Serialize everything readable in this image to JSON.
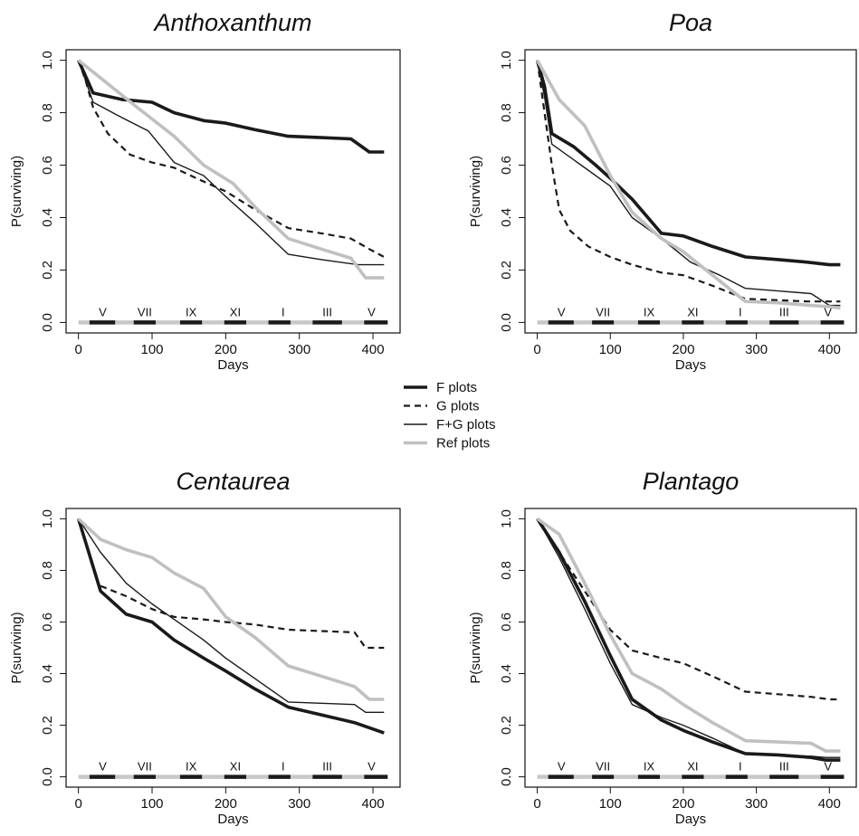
{
  "chart_data": [
    {
      "type": "line",
      "title": "Anthoxanthum",
      "xlabel": "Days",
      "ylabel": "P(surviving)",
      "xlim": [
        0,
        420
      ],
      "ylim": [
        0,
        1
      ],
      "xticks": [
        "0",
        "100",
        "200",
        "300",
        "400"
      ],
      "yticks": [
        "0.0",
        "0.2",
        "0.4",
        "0.6",
        "0.8",
        "1.0"
      ],
      "months": [
        "V",
        "VII",
        "IX",
        "XI",
        "I",
        "III",
        "V"
      ],
      "series": [
        {
          "name": "F plots",
          "x": [
            0,
            20,
            60,
            100,
            130,
            170,
            200,
            240,
            285,
            330,
            370,
            395,
            415
          ],
          "y": [
            1.0,
            0.875,
            0.85,
            0.84,
            0.8,
            0.77,
            0.76,
            0.735,
            0.71,
            0.705,
            0.7,
            0.65,
            0.65
          ]
        },
        {
          "name": "G plots",
          "x": [
            0,
            10,
            20,
            40,
            70,
            100,
            130,
            160,
            200,
            240,
            285,
            330,
            370,
            395,
            415
          ],
          "y": [
            1.0,
            0.92,
            0.82,
            0.72,
            0.64,
            0.61,
            0.59,
            0.55,
            0.5,
            0.43,
            0.36,
            0.34,
            0.32,
            0.28,
            0.25
          ]
        },
        {
          "name": "F+G plots",
          "x": [
            0,
            20,
            60,
            95,
            130,
            170,
            200,
            240,
            285,
            330,
            380,
            415
          ],
          "y": [
            1.0,
            0.84,
            0.78,
            0.73,
            0.61,
            0.56,
            0.48,
            0.38,
            0.26,
            0.24,
            0.22,
            0.22
          ]
        },
        {
          "name": "Ref plots",
          "x": [
            0,
            40,
            80,
            130,
            170,
            210,
            240,
            285,
            330,
            370,
            390,
            415
          ],
          "y": [
            1.0,
            0.91,
            0.82,
            0.71,
            0.6,
            0.53,
            0.44,
            0.32,
            0.28,
            0.245,
            0.17,
            0.17
          ]
        }
      ]
    },
    {
      "type": "line",
      "title": "Poa",
      "xlabel": "Days",
      "ylabel": "P(surviving)",
      "xlim": [
        0,
        420
      ],
      "ylim": [
        0,
        1
      ],
      "xticks": [
        "0",
        "100",
        "200",
        "300",
        "400"
      ],
      "yticks": [
        "0.0",
        "0.2",
        "0.4",
        "0.6",
        "0.8",
        "1.0"
      ],
      "months": [
        "V",
        "VII",
        "IX",
        "XI",
        "I",
        "III",
        "V"
      ],
      "series": [
        {
          "name": "F plots",
          "x": [
            0,
            10,
            20,
            50,
            80,
            100,
            130,
            170,
            200,
            240,
            285,
            330,
            370,
            400,
            415
          ],
          "y": [
            1.0,
            0.9,
            0.72,
            0.67,
            0.6,
            0.55,
            0.47,
            0.34,
            0.33,
            0.29,
            0.25,
            0.24,
            0.23,
            0.22,
            0.22
          ]
        },
        {
          "name": "G plots",
          "x": [
            0,
            10,
            20,
            30,
            45,
            70,
            100,
            130,
            170,
            200,
            240,
            285,
            330,
            370,
            400,
            415
          ],
          "y": [
            1.0,
            0.8,
            0.6,
            0.43,
            0.35,
            0.29,
            0.25,
            0.22,
            0.19,
            0.18,
            0.14,
            0.09,
            0.085,
            0.08,
            0.08,
            0.08
          ]
        },
        {
          "name": "F+G plots",
          "x": [
            0,
            10,
            20,
            60,
            100,
            130,
            170,
            210,
            250,
            285,
            330,
            375,
            400,
            415
          ],
          "y": [
            1.0,
            0.86,
            0.68,
            0.6,
            0.52,
            0.4,
            0.32,
            0.23,
            0.18,
            0.13,
            0.12,
            0.11,
            0.065,
            0.065
          ]
        },
        {
          "name": "Ref plots",
          "x": [
            0,
            10,
            30,
            65,
            100,
            130,
            170,
            200,
            240,
            285,
            330,
            375,
            400,
            415
          ],
          "y": [
            1.0,
            0.95,
            0.85,
            0.75,
            0.56,
            0.42,
            0.32,
            0.27,
            0.18,
            0.08,
            0.075,
            0.065,
            0.06,
            0.055
          ]
        }
      ]
    },
    {
      "type": "line",
      "title": "Centaurea",
      "xlabel": "Days",
      "ylabel": "P(surviving)",
      "xlim": [
        0,
        420
      ],
      "ylim": [
        0,
        1
      ],
      "xticks": [
        "0",
        "100",
        "200",
        "300",
        "400"
      ],
      "yticks": [
        "0.0",
        "0.2",
        "0.4",
        "0.6",
        "0.8",
        "1.0"
      ],
      "months": [
        "V",
        "VII",
        "IX",
        "XI",
        "I",
        "III",
        "V"
      ],
      "series": [
        {
          "name": "F plots",
          "x": [
            0,
            30,
            65,
            100,
            130,
            170,
            200,
            240,
            285,
            330,
            375,
            415
          ],
          "y": [
            1.0,
            0.72,
            0.63,
            0.6,
            0.53,
            0.46,
            0.41,
            0.34,
            0.27,
            0.24,
            0.21,
            0.17
          ]
        },
        {
          "name": "G plots",
          "x": [
            30,
            65,
            100,
            130,
            170,
            200,
            240,
            285,
            330,
            375,
            390,
            415
          ],
          "y": [
            0.74,
            0.7,
            0.65,
            0.62,
            0.61,
            0.6,
            0.59,
            0.57,
            0.565,
            0.56,
            0.5,
            0.5
          ]
        },
        {
          "name": "F+G plots",
          "x": [
            0,
            30,
            65,
            100,
            130,
            170,
            200,
            240,
            285,
            330,
            375,
            390,
            415
          ],
          "y": [
            1.0,
            0.87,
            0.75,
            0.67,
            0.61,
            0.53,
            0.46,
            0.38,
            0.29,
            0.285,
            0.28,
            0.25,
            0.25
          ]
        },
        {
          "name": "Ref plots",
          "x": [
            0,
            30,
            65,
            100,
            130,
            170,
            200,
            240,
            285,
            330,
            375,
            395,
            415
          ],
          "y": [
            1.0,
            0.92,
            0.88,
            0.85,
            0.79,
            0.73,
            0.62,
            0.54,
            0.43,
            0.39,
            0.35,
            0.3,
            0.3
          ]
        }
      ]
    },
    {
      "type": "line",
      "title": "Plantago",
      "xlabel": "Days",
      "ylabel": "P(surviving)",
      "xlim": [
        0,
        420
      ],
      "ylim": [
        0,
        1
      ],
      "xticks": [
        "0",
        "100",
        "200",
        "300",
        "400"
      ],
      "yticks": [
        "0.0",
        "0.2",
        "0.4",
        "0.6",
        "0.8",
        "1.0"
      ],
      "months": [
        "V",
        "VII",
        "IX",
        "XI",
        "I",
        "III",
        "V"
      ],
      "series": [
        {
          "name": "F plots",
          "x": [
            0,
            30,
            65,
            100,
            130,
            170,
            200,
            240,
            285,
            330,
            375,
            395,
            415
          ],
          "y": [
            1.0,
            0.87,
            0.68,
            0.47,
            0.3,
            0.22,
            0.18,
            0.135,
            0.09,
            0.085,
            0.075,
            0.065,
            0.065
          ]
        },
        {
          "name": "G plots",
          "x": [
            0,
            30,
            65,
            100,
            130,
            170,
            200,
            240,
            285,
            330,
            375,
            400,
            415
          ],
          "y": [
            1.0,
            0.87,
            0.72,
            0.57,
            0.49,
            0.46,
            0.44,
            0.39,
            0.33,
            0.32,
            0.31,
            0.3,
            0.3
          ]
        },
        {
          "name": "F+G plots",
          "x": [
            0,
            30,
            65,
            100,
            130,
            170,
            200,
            240,
            285,
            330,
            375,
            395,
            415
          ],
          "y": [
            1.0,
            0.85,
            0.65,
            0.44,
            0.28,
            0.23,
            0.2,
            0.15,
            0.09,
            0.085,
            0.08,
            0.075,
            0.075
          ]
        },
        {
          "name": "Ref plots",
          "x": [
            0,
            30,
            65,
            100,
            130,
            170,
            200,
            240,
            285,
            330,
            375,
            395,
            415
          ],
          "y": [
            1.0,
            0.94,
            0.75,
            0.55,
            0.4,
            0.34,
            0.28,
            0.21,
            0.14,
            0.135,
            0.13,
            0.1,
            0.1
          ]
        }
      ]
    }
  ],
  "legend": {
    "entries": [
      {
        "label": "F plots",
        "style": "F"
      },
      {
        "label": "G plots",
        "style": "G"
      },
      {
        "label": "F+G plots",
        "style": "FG"
      },
      {
        "label": "Ref plots",
        "style": "Ref"
      }
    ]
  },
  "styles": {
    "F": {
      "color": "#1a1a1a",
      "width": 3.6,
      "dash": ""
    },
    "G": {
      "color": "#1a1a1a",
      "width": 2.2,
      "dash": "7,5"
    },
    "FG": {
      "color": "#1a1a1a",
      "width": 1.4,
      "dash": ""
    },
    "Ref": {
      "color": "#c0c0c0",
      "width": 3.6,
      "dash": ""
    }
  },
  "season_bar": {
    "gray": "#c8c8c8",
    "black": "#1a1a1a"
  }
}
